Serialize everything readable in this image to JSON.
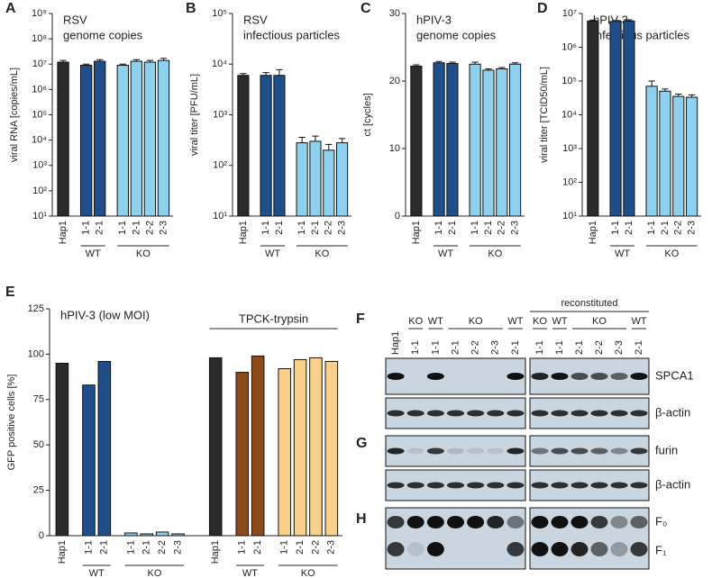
{
  "chart_data": [
    {
      "type": "bar",
      "label": "A",
      "title": [
        "RSV",
        "genome copies"
      ],
      "y_label": "viral RNA [copies/mL]",
      "log_y": true,
      "categories": [
        "Hap1",
        "1-1",
        "2-1",
        "1-1",
        "2-1",
        "2-2",
        "2-3"
      ],
      "category_groups": [
        null,
        "WT",
        "WT",
        "KO",
        "KO",
        "KO",
        "KO"
      ],
      "values": [
        12000000,
        9000000,
        13000000,
        9000000,
        13000000,
        12000000,
        14000000
      ],
      "errors": [
        2000000,
        1000000,
        2000000,
        1000000,
        2000000,
        2000000,
        3000000
      ],
      "colors": [
        "#2b2b2b",
        "#1f4e8a",
        "#1f4e8a",
        "#8dd1ef",
        "#8dd1ef",
        "#8dd1ef",
        "#8dd1ef"
      ],
      "ylim": [
        10,
        1000000000
      ],
      "yticks": [
        {
          "value": 10,
          "label": "10¹"
        },
        {
          "value": 100,
          "label": "10²"
        },
        {
          "value": 1000,
          "label": "10³"
        },
        {
          "value": 10000,
          "label": "10⁴"
        },
        {
          "value": 100000,
          "label": "10⁵"
        },
        {
          "value": 1000000,
          "label": "10⁶"
        },
        {
          "value": 10000000,
          "label": "10⁷"
        },
        {
          "value": 100000000,
          "label": "10⁸"
        },
        {
          "value": 1000000000,
          "label": "10⁹"
        }
      ]
    },
    {
      "type": "bar",
      "label": "B",
      "title": [
        "RSV",
        "infectious particles"
      ],
      "y_label": "viral titer [PFU/mL]",
      "log_y": true,
      "categories": [
        "Hap1",
        "1-1",
        "2-1",
        "1-1",
        "2-1",
        "2-2",
        "2-3"
      ],
      "category_groups": [
        null,
        "WT",
        "WT",
        "KO",
        "KO",
        "KO",
        "KO"
      ],
      "values": [
        6000,
        6000,
        6000,
        280,
        300,
        200,
        280
      ],
      "errors": [
        500,
        800,
        1800,
        80,
        80,
        60,
        60
      ],
      "colors": [
        "#2b2b2b",
        "#1f4e8a",
        "#1f4e8a",
        "#8dd1ef",
        "#8dd1ef",
        "#8dd1ef",
        "#8dd1ef"
      ],
      "ylim": [
        10,
        100000
      ],
      "yticks": [
        {
          "value": 10,
          "label": "10¹"
        },
        {
          "value": 100,
          "label": "10²"
        },
        {
          "value": 1000,
          "label": "10³"
        },
        {
          "value": 10000,
          "label": "10⁴"
        },
        {
          "value": 100000,
          "label": "10⁵"
        }
      ]
    },
    {
      "type": "bar",
      "label": "C",
      "title": [
        "hPIV-3",
        "genome copies"
      ],
      "y_label": "ct [cycles]",
      "log_y": false,
      "categories": [
        "Hap1",
        "1-1",
        "2-1",
        "1-1",
        "2-1",
        "2-2",
        "2-3"
      ],
      "category_groups": [
        null,
        "WT",
        "WT",
        "KO",
        "KO",
        "KO",
        "KO"
      ],
      "values": [
        22.2,
        22.7,
        22.6,
        22.5,
        21.6,
        21.8,
        22.5
      ],
      "errors": [
        0.2,
        0.2,
        0.2,
        0.3,
        0.2,
        0.2,
        0.2
      ],
      "colors": [
        "#2b2b2b",
        "#1f4e8a",
        "#1f4e8a",
        "#8dd1ef",
        "#8dd1ef",
        "#8dd1ef",
        "#8dd1ef"
      ],
      "ylim": [
        0,
        30
      ],
      "yticks": [
        0,
        10,
        20,
        30
      ]
    },
    {
      "type": "bar",
      "label": "D",
      "title": [
        "hPIV-3",
        "infectious particles"
      ],
      "y_label": "viral titer [TCID50/mL]",
      "log_y": true,
      "categories": [
        "Hap1",
        "1-1",
        "2-1",
        "1-1",
        "2-1",
        "2-2",
        "2-3"
      ],
      "category_groups": [
        null,
        "WT",
        "WT",
        "KO",
        "KO",
        "KO",
        "KO"
      ],
      "values": [
        6000000,
        5800000,
        6000000,
        70000,
        50000,
        35000,
        33000
      ],
      "errors": [
        400000,
        400000,
        500000,
        30000,
        8000,
        6000,
        6000
      ],
      "colors": [
        "#2b2b2b",
        "#1f4e8a",
        "#1f4e8a",
        "#8dd1ef",
        "#8dd1ef",
        "#8dd1ef",
        "#8dd1ef"
      ],
      "ylim": [
        10,
        10000000
      ],
      "yticks": [
        {
          "value": 10,
          "label": "10¹"
        },
        {
          "value": 100,
          "label": "10²"
        },
        {
          "value": 1000,
          "label": "10³"
        },
        {
          "value": 10000,
          "label": "10⁴"
        },
        {
          "value": 100000,
          "label": "10⁵"
        },
        {
          "value": 1000000,
          "label": "10⁶"
        },
        {
          "value": 10000000,
          "label": "10⁷"
        }
      ]
    },
    {
      "type": "bar",
      "label": "E",
      "title": [
        "hPIV-3 (low MOI)"
      ],
      "y_label": "GFP positive cells [%]",
      "log_y": false,
      "annotation": "TPCK-trypsin",
      "categories": [
        "Hap1",
        "1-1",
        "2-1",
        "1-1",
        "2-1",
        "2-2",
        "2-3",
        "Hap1",
        "1-1",
        "2-1",
        "1-1",
        "2-1",
        "2-2",
        "2-3"
      ],
      "category_groups": [
        null,
        "WT",
        "WT",
        "KO",
        "KO",
        "KO",
        "KO",
        null,
        "WT",
        "WT",
        "KO",
        "KO",
        "KO",
        "KO"
      ],
      "values": [
        95,
        83,
        96,
        1.5,
        1,
        2,
        1,
        98,
        90,
        99,
        92,
        97,
        98,
        96
      ],
      "colors": [
        "#2b2b2b",
        "#1f4e8a",
        "#1f4e8a",
        "#8dd1ef",
        "#8dd1ef",
        "#8dd1ef",
        "#8dd1ef",
        "#2b2b2b",
        "#8b4a1c",
        "#8b4a1c",
        "#f8d08a",
        "#f8d08a",
        "#f8d08a",
        "#f8d08a"
      ],
      "ylim": [
        0,
        125
      ],
      "yticks": [
        0,
        25,
        50,
        75,
        100,
        125
      ]
    }
  ],
  "blot": {
    "letters": [
      "F",
      "G",
      "H"
    ],
    "header": "reconstituted",
    "lanes": [
      "Hap1",
      "1-1",
      "1-1",
      "2-1",
      "2-2",
      "2-3",
      "2-1",
      "1-1",
      "1-1",
      "2-1",
      "2-2",
      "2-3",
      "2-1"
    ],
    "lane_groups": [
      null,
      "KO",
      "WT",
      "KO",
      "KO",
      "KO",
      "WT",
      "KO",
      "WT",
      "KO",
      "KO",
      "KO",
      "WT"
    ],
    "rows": [
      "SPCA1",
      "β-actin",
      "furin",
      "β-actin",
      "F₀",
      "F₁"
    ]
  }
}
